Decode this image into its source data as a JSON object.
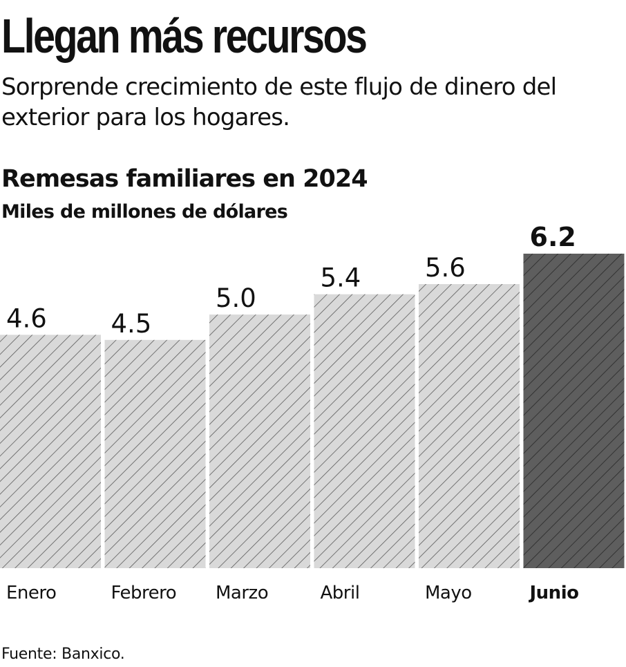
{
  "headline": "Llegan más recursos",
  "subhead": "Sorprende crecimiento de este flujo de dinero del exterior para los hogares.",
  "source": "Fuente: Banxico.",
  "colors": {
    "bar_fill": "#d9d9d9",
    "bar_hatch": "#5a5a5a",
    "highlight_fill": "#5e5e5e",
    "highlight_hatch": "#2e2e2e",
    "text": "#111111"
  },
  "chart_data": {
    "type": "bar",
    "title": "Remesas familiares en 2024",
    "ylabel": "Miles de millones de dólares",
    "xlabel": "",
    "categories": [
      "Enero",
      "Febrero",
      "Marzo",
      "Abril",
      "Mayo",
      "Junio"
    ],
    "values": [
      4.6,
      4.5,
      5.0,
      5.4,
      5.6,
      6.2
    ],
    "labels": [
      "4.6",
      "4.5",
      "5.0",
      "5.4",
      "5.6",
      "6.2"
    ],
    "highlight": "Junio",
    "ylim": [
      0,
      6.2
    ],
    "grid": false,
    "legend": "none"
  }
}
